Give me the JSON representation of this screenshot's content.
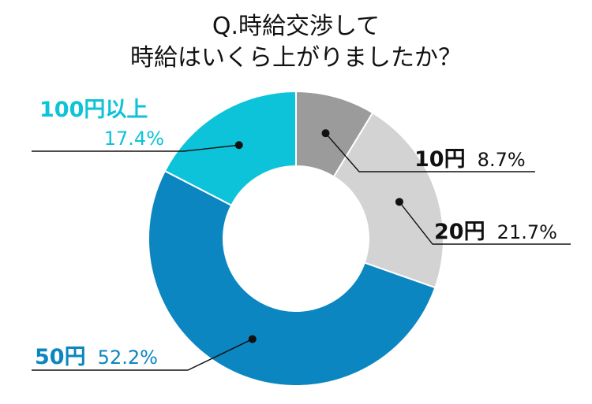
{
  "chart_data": {
    "type": "pie",
    "title_line1": "Q.時給交渉して",
    "title_line2": "時給はいくら上がりましたか？",
    "slices": [
      {
        "label": "10円",
        "value_text": "8.7%",
        "value": 8.7,
        "color": "#9b9b9b"
      },
      {
        "label": "20円",
        "value_text": "21.7%",
        "value": 21.7,
        "color": "#d3d3d3"
      },
      {
        "label": "50円",
        "value_text": "52.2%",
        "value": 52.2,
        "color": "#0b86c0"
      },
      {
        "label": "100円以上",
        "value_text": "17.4%",
        "value": 17.4,
        "color": "#0dc3d9"
      }
    ],
    "label_colors": {
      "dark": "#111111",
      "blue": "#0b86c0",
      "cyan": "#0dc3d9"
    }
  }
}
